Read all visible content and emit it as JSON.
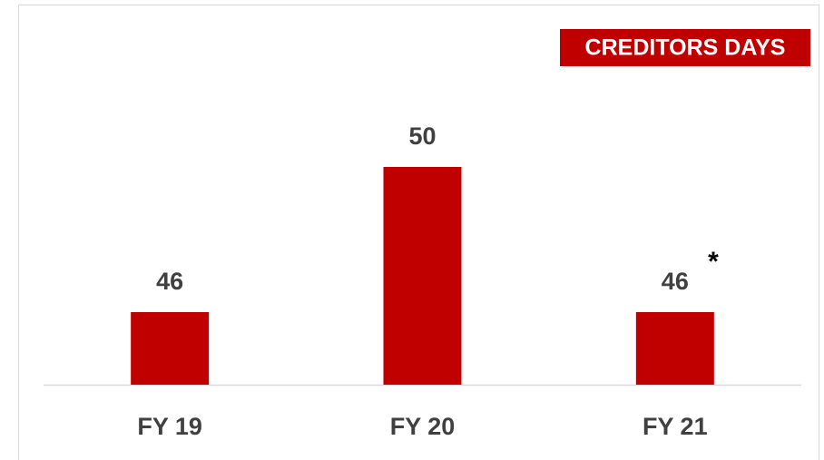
{
  "chart_data": {
    "type": "bar",
    "title": "CREDITORS DAYS",
    "categories": [
      "FY 19",
      "FY 20",
      "FY 21"
    ],
    "values": [
      46,
      50,
      46
    ],
    "color": "#c00000",
    "ylim": [
      44,
      52
    ],
    "annotation": "*"
  }
}
